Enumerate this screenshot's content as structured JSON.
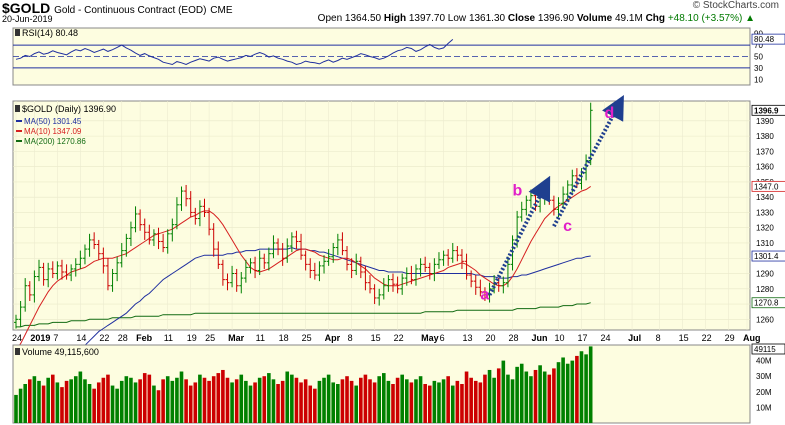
{
  "header": {
    "symbol": "$GOLD",
    "description": "Gold - Continuous Contract (EOD)",
    "exchange": "CME",
    "date": "20-Jun-2019",
    "brand": "© StockCharts.com",
    "open_label": "Open",
    "open": "1364.50",
    "high_label": "High",
    "high": "1397.70",
    "low_label": "Low",
    "low": "1361.30",
    "close_label": "Close",
    "close": "1396.90",
    "volume_label": "Volume",
    "volume": "49.1M",
    "chg_label": "Chg",
    "chg": "+48.10 (+3.57%)"
  },
  "chart_data": {
    "type": "candlestick",
    "colors": {
      "up": "#008000",
      "down": "#cc0000",
      "ma50": "#1f2f9f",
      "ma10": "#d62020",
      "ma200": "#126b12",
      "rsi": "#1f2f9f",
      "arrow": "#1f3f8f",
      "wave_label": "#e020c8",
      "panel_bg": "#fdfde0"
    },
    "rsi": {
      "legend": "RSI(14) 80.48",
      "value_label": "80.48",
      "ticks": [
        "90",
        "70",
        "50",
        "30",
        "10"
      ],
      "ylim": [
        0,
        100
      ],
      "values": [
        45,
        47,
        52,
        50,
        55,
        58,
        54,
        56,
        60,
        57,
        55,
        53,
        58,
        62,
        60,
        64,
        61,
        57,
        60,
        63,
        59,
        62,
        66,
        70,
        65,
        61,
        56,
        52,
        55,
        51,
        48,
        45,
        40,
        38,
        36,
        41,
        39,
        36,
        40,
        43,
        46,
        44,
        42,
        47,
        49,
        45,
        42,
        44,
        46,
        48,
        52,
        50,
        54,
        57,
        54,
        49,
        51,
        47,
        45,
        42,
        40,
        36,
        38,
        42,
        40,
        39,
        37,
        41,
        44,
        40,
        43,
        47,
        45,
        48,
        51,
        55,
        53,
        50,
        48,
        45,
        47,
        51,
        56,
        60,
        62,
        66,
        64,
        59,
        62,
        67,
        71,
        66,
        63,
        65,
        73,
        80
      ]
    },
    "price": {
      "legend": "$GOLD (Daily) 1396.90",
      "ylim": [
        1253,
        1403
      ],
      "ticks": [
        "1390",
        "1380",
        "1370",
        "1360",
        "1350",
        "1340",
        "1330",
        "1320",
        "1310",
        "1300",
        "1290",
        "1280",
        "1270",
        "1260"
      ],
      "right_labels": [
        {
          "text": "1396.9",
          "value": 1396.9
        },
        {
          "text": "1347.0",
          "value": 1347.09
        },
        {
          "text": "1301.4",
          "value": 1301.45
        },
        {
          "text": "1270.8",
          "value": 1270.86
        }
      ],
      "closes": [
        1260,
        1268,
        1282,
        1276,
        1288,
        1294,
        1286,
        1293,
        1290,
        1295,
        1291,
        1289,
        1293,
        1296,
        1300,
        1306,
        1312,
        1309,
        1303,
        1295,
        1282,
        1290,
        1297,
        1305,
        1313,
        1320,
        1329,
        1322,
        1317,
        1312,
        1316,
        1311,
        1307,
        1316,
        1322,
        1335,
        1344,
        1339,
        1330,
        1326,
        1334,
        1330,
        1319,
        1306,
        1296,
        1286,
        1284,
        1290,
        1282,
        1287,
        1294,
        1297,
        1292,
        1300,
        1297,
        1303,
        1310,
        1306,
        1300,
        1308,
        1314,
        1311,
        1302,
        1296,
        1292,
        1289,
        1295,
        1298,
        1301,
        1307,
        1312,
        1305,
        1296,
        1292,
        1298,
        1291,
        1284,
        1280,
        1274,
        1276,
        1282,
        1286,
        1283,
        1280,
        1287,
        1290,
        1286,
        1293,
        1296,
        1294,
        1290,
        1296,
        1299,
        1302,
        1300,
        1305,
        1302,
        1298,
        1289,
        1285,
        1281,
        1278,
        1276,
        1280,
        1284,
        1282,
        1284,
        1296,
        1312,
        1327,
        1332,
        1338,
        1341,
        1334,
        1340,
        1345,
        1338,
        1332,
        1336,
        1342,
        1348,
        1354,
        1349,
        1356,
        1364,
        1396.9
      ],
      "ma50": [
        1210,
        1212,
        1214,
        1216,
        1218,
        1220,
        1222,
        1224,
        1226,
        1228,
        1230,
        1232,
        1234,
        1237,
        1240,
        1243,
        1246,
        1249,
        1252,
        1254,
        1256,
        1258,
        1260,
        1262,
        1264,
        1267,
        1270,
        1272,
        1275,
        1277,
        1280,
        1283,
        1286,
        1288,
        1290,
        1292,
        1294,
        1296,
        1298,
        1300,
        1301,
        1302,
        1302,
        1302,
        1302,
        1302,
        1303,
        1303,
        1304,
        1304,
        1305,
        1305,
        1305,
        1306,
        1306,
        1306,
        1306,
        1306,
        1306,
        1306,
        1307,
        1306,
        1306,
        1306,
        1305,
        1305,
        1304,
        1304,
        1303,
        1302,
        1301,
        1300,
        1299,
        1298,
        1297,
        1296,
        1295,
        1294,
        1293,
        1292,
        1292,
        1291,
        1291,
        1291,
        1291,
        1290,
        1290,
        1290,
        1290,
        1290,
        1290,
        1290,
        1290,
        1290,
        1290,
        1290,
        1290,
        1290,
        1290,
        1290,
        1289,
        1289,
        1288,
        1288,
        1288,
        1287,
        1287,
        1287,
        1288,
        1288,
        1289,
        1289,
        1290,
        1291,
        1292,
        1293,
        1294,
        1295,
        1296,
        1297,
        1298,
        1299,
        1300,
        1300,
        1301,
        1301.45
      ],
      "ma10": [
        1240,
        1244,
        1250,
        1256,
        1262,
        1268,
        1273,
        1278,
        1282,
        1285,
        1287,
        1289,
        1291,
        1292,
        1293,
        1294,
        1296,
        1298,
        1299,
        1300,
        1300,
        1300,
        1301,
        1302,
        1303,
        1305,
        1307,
        1309,
        1311,
        1313,
        1315,
        1316,
        1317,
        1318,
        1319,
        1321,
        1323,
        1325,
        1327,
        1328,
        1330,
        1331,
        1331,
        1329,
        1326,
        1322,
        1317,
        1312,
        1307,
        1302,
        1298,
        1294,
        1292,
        1291,
        1292,
        1293,
        1295,
        1297,
        1299,
        1301,
        1303,
        1305,
        1306,
        1306,
        1305,
        1304,
        1302,
        1301,
        1300,
        1299,
        1299,
        1300,
        1300,
        1299,
        1297,
        1295,
        1293,
        1290,
        1287,
        1285,
        1283,
        1282,
        1282,
        1282,
        1283,
        1284,
        1285,
        1286,
        1287,
        1288,
        1289,
        1290,
        1291,
        1292,
        1294,
        1295,
        1296,
        1297,
        1296,
        1294,
        1292,
        1289,
        1287,
        1285,
        1283,
        1282,
        1282,
        1284,
        1288,
        1293,
        1299,
        1305,
        1311,
        1316,
        1321,
        1326,
        1329,
        1332,
        1334,
        1336,
        1338,
        1340,
        1342,
        1344,
        1345,
        1347.09
      ],
      "ma200": [
        1255,
        1255,
        1256,
        1256,
        1256,
        1257,
        1257,
        1257,
        1258,
        1258,
        1258,
        1258,
        1259,
        1259,
        1259,
        1259,
        1260,
        1260,
        1260,
        1260,
        1260,
        1261,
        1261,
        1261,
        1261,
        1261,
        1262,
        1262,
        1262,
        1262,
        1262,
        1262,
        1263,
        1263,
        1263,
        1263,
        1263,
        1263,
        1263,
        1264,
        1264,
        1264,
        1264,
        1264,
        1264,
        1264,
        1264,
        1264,
        1264,
        1264,
        1264,
        1264,
        1264,
        1264,
        1264,
        1264,
        1264,
        1264,
        1264,
        1264,
        1264,
        1264,
        1264,
        1264,
        1264,
        1264,
        1264,
        1264,
        1264,
        1264,
        1264,
        1264,
        1264,
        1264,
        1264,
        1264,
        1264,
        1264,
        1264,
        1264,
        1264,
        1264,
        1264,
        1264,
        1264,
        1264,
        1264,
        1264,
        1264,
        1265,
        1265,
        1265,
        1265,
        1265,
        1265,
        1265,
        1266,
        1266,
        1266,
        1266,
        1266,
        1266,
        1266,
        1266,
        1266,
        1266,
        1266,
        1266,
        1266,
        1267,
        1267,
        1267,
        1267,
        1267,
        1268,
        1268,
        1268,
        1268,
        1268,
        1269,
        1269,
        1269,
        1270,
        1270,
        1270,
        1270.86
      ],
      "waves": [
        {
          "label": "a",
          "bar": 101,
          "value": 1273
        },
        {
          "label": "b",
          "bar": 108,
          "value": 1341
        },
        {
          "label": "c",
          "bar": 119,
          "value": 1318
        },
        {
          "label": "d",
          "bar": 128,
          "value": 1392
        }
      ],
      "arrows": [
        {
          "from_bar": 103,
          "from_value": 1276,
          "to_bar": 115,
          "to_value": 1347
        },
        {
          "from_bar": 117,
          "from_value": 1321,
          "to_bar": 131,
          "to_value": 1400
        }
      ]
    },
    "indicators": [
      {
        "label": "MA(50) 1301.45",
        "color": "#1f2f9f"
      },
      {
        "label": "MA(10) 1347.09",
        "color": "#d62020"
      },
      {
        "label": "MA(200) 1270.86",
        "color": "#126b12"
      }
    ],
    "x_ticks": [
      {
        "label": "24",
        "bar": 0
      },
      {
        "label": "2019",
        "bar": 4
      },
      {
        "label": "7",
        "bar": 9
      },
      {
        "label": "14",
        "bar": 14
      },
      {
        "label": "22",
        "bar": 19
      },
      {
        "label": "28",
        "bar": 23
      },
      {
        "label": "Feb",
        "bar": 27
      },
      {
        "label": "11",
        "bar": 33
      },
      {
        "label": "19",
        "bar": 38
      },
      {
        "label": "25",
        "bar": 42
      },
      {
        "label": "Mar",
        "bar": 47
      },
      {
        "label": "11",
        "bar": 53
      },
      {
        "label": "18",
        "bar": 58
      },
      {
        "label": "25",
        "bar": 63
      },
      {
        "label": "Apr",
        "bar": 68
      },
      {
        "label": "8",
        "bar": 73
      },
      {
        "label": "15",
        "bar": 78
      },
      {
        "label": "22",
        "bar": 83
      },
      {
        "label": "May",
        "bar": 89
      },
      {
        "label": "6",
        "bar": 93
      },
      {
        "label": "13",
        "bar": 98
      },
      {
        "label": "20",
        "bar": 103
      },
      {
        "label": "28",
        "bar": 108
      },
      {
        "label": "Jun",
        "bar": 113
      },
      {
        "label": "10",
        "bar": 118
      },
      {
        "label": "17",
        "bar": 123
      },
      {
        "label": "24",
        "bar": 128
      },
      {
        "label": "Jul",
        "bar": 134
      },
      {
        "label": "8",
        "bar": 140
      },
      {
        "label": "15",
        "bar": 145
      },
      {
        "label": "22",
        "bar": 150
      },
      {
        "label": "29",
        "bar": 155
      },
      {
        "label": "Aug",
        "bar": 159
      }
    ],
    "volume": {
      "legend": "Volume 49,115,600",
      "ticks": [
        "40M",
        "30M",
        "20M",
        "10M"
      ],
      "tick_values": [
        40,
        30,
        20,
        10
      ],
      "right_label": "49115",
      "ylim": [
        0,
        50
      ],
      "values": [
        18,
        22,
        25,
        28,
        30,
        27,
        24,
        29,
        31,
        26,
        23,
        27,
        28,
        30,
        33,
        28,
        25,
        22,
        26,
        29,
        31,
        24,
        22,
        27,
        30,
        29,
        26,
        28,
        32,
        31,
        24,
        21,
        28,
        30,
        27,
        29,
        33,
        28,
        24,
        26,
        31,
        29,
        27,
        30,
        32,
        34,
        29,
        26,
        28,
        31,
        27,
        24,
        26,
        29,
        30,
        32,
        28,
        25,
        27,
        33,
        31,
        29,
        26,
        28,
        24,
        22,
        27,
        29,
        31,
        26,
        25,
        28,
        30,
        27,
        24,
        29,
        31,
        28,
        26,
        30,
        32,
        27,
        25,
        29,
        31,
        28,
        26,
        28,
        30,
        25,
        24,
        27,
        26,
        28,
        30,
        24,
        27,
        25,
        33,
        29,
        27,
        26,
        31,
        34,
        29,
        35,
        40,
        31,
        28,
        36,
        38,
        33,
        30,
        34,
        37,
        33,
        31,
        35,
        39,
        42,
        38,
        40,
        43,
        46,
        44,
        49.1
      ]
    }
  }
}
